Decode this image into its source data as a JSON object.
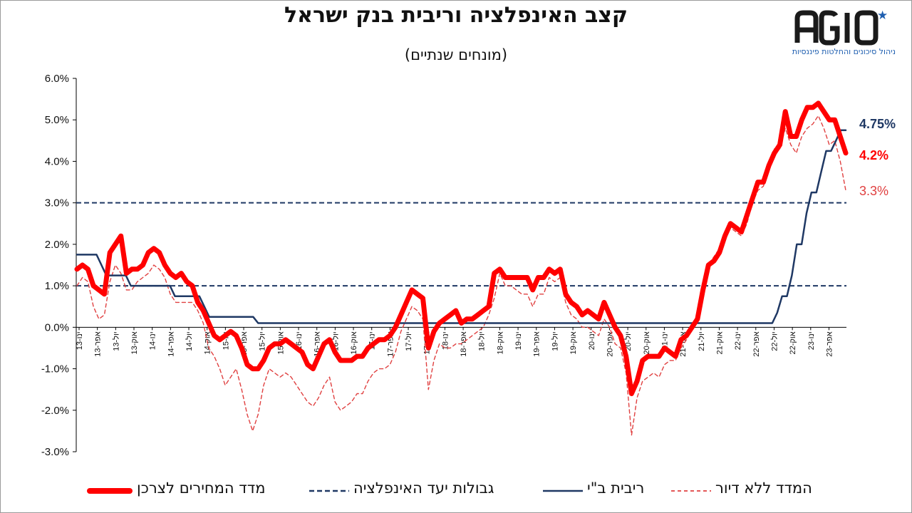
{
  "title": "קצב האינפלציה וריבית בנק ישראל",
  "subtitle": "(מונחים שנתיים)",
  "logo": {
    "text": "AGIO",
    "tagline": "ניהול סיכונים והחלטות פיננסיות",
    "icon": "star-icon",
    "star_color": "#1f5fb0"
  },
  "colors": {
    "cpi": "#ff0000",
    "core": "#e04040",
    "rate": "#1f3864",
    "target": "#1f3864"
  },
  "legend": {
    "cpi": "מדד המחירים לצרכן",
    "target": "גבולות יעד האינפלציה",
    "rate": "ריבית ב\"י",
    "core": "המדד ללא דיור"
  },
  "end_labels": {
    "rate": "4.75%",
    "cpi": "4.2%",
    "core": "3.3%"
  },
  "chart_data": {
    "type": "line",
    "title": "קצב האינפלציה וריבית בנק ישראל",
    "subtitle": "(מונחים שנתיים)",
    "ylim": [
      -3.0,
      6.0
    ],
    "y_ticks": [
      "6.0%",
      "5.0%",
      "4.0%",
      "3.0%",
      "2.0%",
      "1.0%",
      "0.0%",
      "-1.0%",
      "-2.0%",
      "-3.0%"
    ],
    "y_tick_values": [
      6,
      5,
      4,
      3,
      2,
      1,
      0,
      -1,
      -2,
      -3
    ],
    "x_start": "2013-01",
    "x_end": "2023-06",
    "x_ticks": [
      "ינו-13",
      "אפר-13",
      "יול-13",
      "אוק-13",
      "ינו-14",
      "אפר-14",
      "יול-14",
      "אוק-14",
      "ינו-15",
      "אפר-15",
      "יול-15",
      "אוק-15",
      "ינו-16",
      "אפר-16",
      "יול-16",
      "אוק-16",
      "ינו-17",
      "אפר-17",
      "יול-17",
      "אוק-17",
      "ינו-18",
      "אפר-18",
      "יול-18",
      "אוק-18",
      "ינו-19",
      "אפר-19",
      "יול-19",
      "אוק-19",
      "ינו-20",
      "אפר-20",
      "יול-20",
      "אוק-20",
      "ינו-21",
      "אפר-21",
      "יול-21",
      "אוק-21",
      "ינו-22",
      "אפר-22",
      "יול-22",
      "אוק-22",
      "ינו-23",
      "אפר-23"
    ],
    "grid": false,
    "legend_position": "bottom",
    "target_band": [
      1,
      3
    ],
    "series": [
      {
        "name": "מדד המחירים לצרכן",
        "style": "thick-solid",
        "values": [
          1.4,
          1.5,
          1.4,
          1.0,
          0.9,
          0.8,
          1.8,
          2.0,
          2.2,
          1.3,
          1.4,
          1.4,
          1.5,
          1.8,
          1.9,
          1.8,
          1.5,
          1.3,
          1.2,
          1.3,
          1.1,
          1.0,
          0.6,
          0.4,
          0.1,
          -0.2,
          -0.3,
          -0.2,
          -0.1,
          -0.2,
          -0.5,
          -0.9,
          -1.0,
          -1.0,
          -0.8,
          -0.5,
          -0.4,
          -0.4,
          -0.3,
          -0.4,
          -0.5,
          -0.6,
          -0.9,
          -1.0,
          -0.7,
          -0.4,
          -0.3,
          -0.6,
          -0.8,
          -0.8,
          -0.8,
          -0.7,
          -0.7,
          -0.5,
          -0.4,
          -0.3,
          -0.3,
          -0.2,
          0.0,
          0.3,
          0.6,
          0.9,
          0.8,
          0.7,
          -0.5,
          -0.1,
          0.1,
          0.2,
          0.3,
          0.4,
          0.1,
          0.2,
          0.2,
          0.3,
          0.4,
          0.5,
          1.3,
          1.4,
          1.2,
          1.2,
          1.2,
          1.2,
          1.2,
          0.9,
          1.2,
          1.2,
          1.4,
          1.3,
          1.4,
          0.8,
          0.6,
          0.5,
          0.3,
          0.4,
          0.3,
          0.2,
          0.6,
          0.3,
          0.0,
          -0.2,
          -0.7,
          -1.6,
          -1.3,
          -0.8,
          -0.7,
          -0.7,
          -0.7,
          -0.5,
          -0.6,
          -0.7,
          -0.3,
          -0.2,
          0.0,
          0.2,
          0.9,
          1.5,
          1.6,
          1.8,
          2.2,
          2.5,
          2.4,
          2.3,
          2.7,
          3.1,
          3.5,
          3.5,
          3.9,
          4.2,
          4.4,
          5.2,
          4.6,
          4.6,
          5.0,
          5.3,
          5.3,
          5.4,
          5.2,
          5.0,
          5.0,
          4.6,
          4.2
        ]
      },
      {
        "name": "המדד ללא דיור",
        "style": "thin-dashed",
        "values": [
          1.0,
          1.2,
          1.1,
          0.5,
          0.2,
          0.3,
          1.1,
          1.5,
          1.3,
          0.9,
          0.9,
          1.1,
          1.2,
          1.3,
          1.5,
          1.4,
          1.2,
          0.8,
          0.6,
          0.6,
          0.6,
          0.6,
          0.4,
          0.1,
          -0.5,
          -0.7,
          -1.0,
          -1.4,
          -1.2,
          -1.0,
          -1.5,
          -2.1,
          -2.5,
          -2.1,
          -1.4,
          -1.0,
          -1.1,
          -1.2,
          -1.1,
          -1.2,
          -1.4,
          -1.6,
          -1.8,
          -1.9,
          -1.7,
          -1.4,
          -1.2,
          -1.8,
          -2.0,
          -1.9,
          -1.8,
          -1.6,
          -1.6,
          -1.3,
          -1.1,
          -1.0,
          -1.0,
          -0.9,
          -0.6,
          -0.1,
          0.2,
          0.5,
          0.4,
          0.2,
          -1.5,
          -0.8,
          -0.4,
          -0.5,
          -0.5,
          -0.4,
          -0.4,
          -0.3,
          -0.2,
          -0.1,
          0.0,
          0.3,
          0.7,
          1.3,
          1.0,
          1.0,
          0.9,
          0.8,
          0.8,
          0.5,
          0.8,
          0.8,
          1.2,
          1.1,
          1.2,
          0.6,
          0.3,
          0.2,
          0.0,
          0.0,
          -0.1,
          -0.2,
          0.2,
          0.0,
          -0.4,
          -0.5,
          -1.1,
          -2.6,
          -1.7,
          -1.3,
          -1.2,
          -1.1,
          -1.2,
          -0.9,
          -0.8,
          -0.8,
          -0.5,
          -0.3,
          0.0,
          0.3,
          1.0,
          1.5,
          1.7,
          1.9,
          2.2,
          2.4,
          2.3,
          2.2,
          2.5,
          3.0,
          3.3,
          3.4,
          3.8,
          4.3,
          4.3,
          4.8,
          4.4,
          4.2,
          4.6,
          4.8,
          4.9,
          5.1,
          4.8,
          4.4,
          4.5,
          4.0,
          3.3
        ]
      },
      {
        "name": "ריבית ב\"י",
        "style": "solid",
        "values": [
          1.75,
          1.75,
          1.75,
          1.75,
          1.75,
          1.5,
          1.25,
          1.25,
          1.25,
          1.25,
          1.25,
          1.0,
          1.0,
          1.0,
          1.0,
          1.0,
          1.0,
          1.0,
          1.0,
          1.0,
          0.75,
          0.75,
          0.75,
          0.75,
          0.75,
          0.75,
          0.5,
          0.25,
          0.25,
          0.25,
          0.25,
          0.25,
          0.25,
          0.25,
          0.25,
          0.25,
          0.25,
          0.1,
          0.1,
          0.1,
          0.1,
          0.1,
          0.1,
          0.1,
          0.1,
          0.1,
          0.1,
          0.1,
          0.1,
          0.1,
          0.1,
          0.1,
          0.1,
          0.1,
          0.1,
          0.1,
          0.1,
          0.1,
          0.1,
          0.1,
          0.1,
          0.1,
          0.1,
          0.1,
          0.1,
          0.1,
          0.1,
          0.1,
          0.1,
          0.1,
          0.1,
          0.1,
          0.1,
          0.1,
          0.1,
          0.1,
          0.1,
          0.1,
          0.1,
          0.1,
          0.1,
          0.1,
          0.1,
          0.1,
          0.1,
          0.1,
          0.1,
          0.1,
          0.1,
          0.1,
          0.1,
          0.1,
          0.1,
          0.1,
          0.1,
          0.1,
          0.1,
          0.1,
          0.1,
          0.1,
          0.1,
          0.1,
          0.1,
          0.1,
          0.1,
          0.1,
          0.1,
          0.1,
          0.1,
          0.1,
          0.1,
          0.1,
          0.1,
          0.1,
          0.1,
          0.1,
          0.1,
          0.1,
          0.1,
          0.1,
          0.1,
          0.1,
          0.1,
          0.1,
          0.1,
          0.1,
          0.1,
          0.1,
          0.1,
          0.1,
          0.1,
          0.1,
          0.1,
          0.1,
          0.1,
          0.1,
          0.1,
          0.1,
          0.1,
          0.1,
          0.1,
          0.1,
          0.1,
          0.35,
          0.75,
          0.75,
          1.25,
          2.0,
          2.0,
          2.75,
          3.25,
          3.25,
          3.75,
          4.25,
          4.25,
          4.5,
          4.75,
          4.75
        ]
      }
    ]
  }
}
